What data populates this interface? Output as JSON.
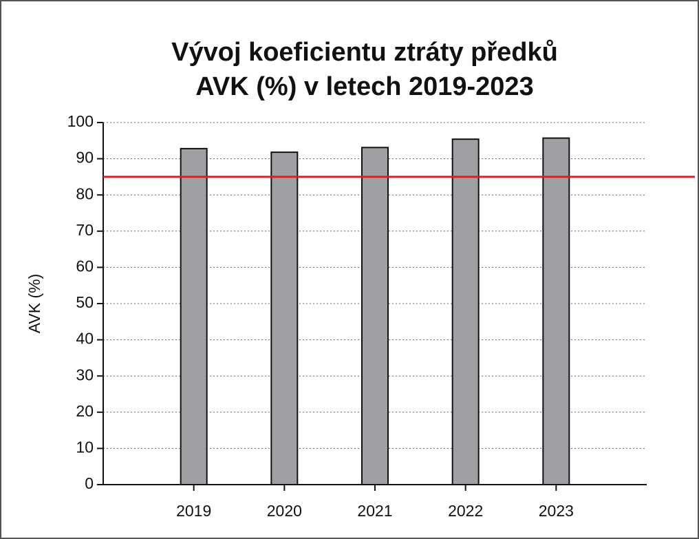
{
  "chart_data": {
    "type": "bar",
    "title": [
      "Vývoj koeficientu ztráty předků",
      "AVK (%) v letech 2019-2023"
    ],
    "ylabel": "AVK (%)",
    "categories": [
      "2019",
      "2020",
      "2021",
      "2022",
      "2023"
    ],
    "values": [
      92.8,
      91.8,
      93.1,
      95.4,
      95.7
    ],
    "color": "#a0a0a4",
    "ylim": [
      0,
      100
    ],
    "yticks": [
      0,
      10,
      20,
      30,
      40,
      50,
      60,
      70,
      80,
      90,
      100
    ],
    "grid": true,
    "reference_line": {
      "value": 85,
      "color": "#e8191c"
    }
  }
}
